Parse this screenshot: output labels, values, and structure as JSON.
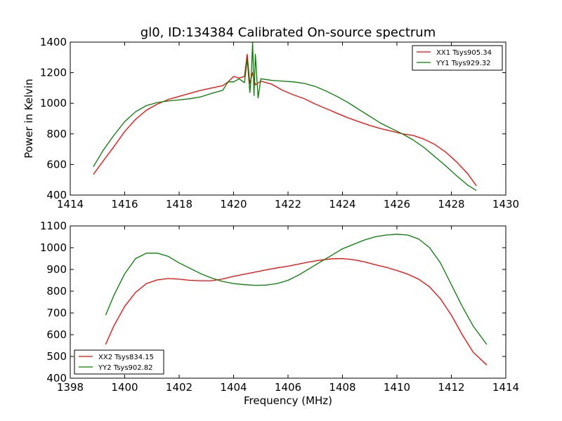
{
  "chart_data": [
    {
      "type": "line",
      "title": "gl0, ID:134384 Calibrated On-source spectrum",
      "xlabel": "",
      "ylabel": "Power in Kelvin",
      "xlim": [
        1414,
        1430
      ],
      "ylim": [
        400,
        1400
      ],
      "xticks": [
        "1414",
        "1416",
        "1418",
        "1420",
        "1422",
        "1424",
        "1426",
        "1428",
        "1430"
      ],
      "yticks": [
        "400",
        "600",
        "800",
        "1000",
        "1200",
        "1400"
      ],
      "legend_position": "top-right",
      "grid": false,
      "series": [
        {
          "name": "XX1 Tsys905.34",
          "color": "#ff0000",
          "x": [
            1414.85,
            1415.2,
            1415.6,
            1416.0,
            1416.4,
            1416.8,
            1417.2,
            1417.6,
            1418.0,
            1418.4,
            1418.8,
            1419.2,
            1419.6,
            1419.8,
            1420.0,
            1420.2,
            1420.4,
            1420.5,
            1420.6,
            1420.7,
            1420.8,
            1421.0,
            1421.4,
            1421.8,
            1422.2,
            1422.6,
            1423.0,
            1423.4,
            1423.8,
            1424.2,
            1424.6,
            1425.0,
            1425.4,
            1425.8,
            1426.2,
            1426.6,
            1427.0,
            1427.4,
            1427.8,
            1428.2,
            1428.6,
            1428.92
          ],
          "y": [
            535,
            620,
            715,
            815,
            895,
            955,
            995,
            1025,
            1045,
            1065,
            1085,
            1100,
            1115,
            1140,
            1175,
            1165,
            1175,
            1320,
            1130,
            1200,
            1120,
            1145,
            1125,
            1085,
            1055,
            1030,
            995,
            965,
            935,
            905,
            880,
            855,
            835,
            818,
            800,
            790,
            765,
            730,
            680,
            615,
            540,
            460
          ]
        },
        {
          "name": "YY1 Tsys929.32",
          "color": "#008000",
          "x": [
            1414.85,
            1415.2,
            1415.6,
            1416.0,
            1416.4,
            1416.8,
            1417.2,
            1417.6,
            1418.0,
            1418.4,
            1418.8,
            1419.2,
            1419.6,
            1419.8,
            1420.0,
            1420.2,
            1420.4,
            1420.5,
            1420.6,
            1420.65,
            1420.7,
            1420.75,
            1420.8,
            1420.9,
            1421.0,
            1421.4,
            1421.8,
            1422.2,
            1422.6,
            1423.0,
            1423.4,
            1423.8,
            1424.2,
            1424.6,
            1425.0,
            1425.4,
            1425.8,
            1426.2,
            1426.6,
            1427.0,
            1427.4,
            1427.8,
            1428.2,
            1428.6,
            1428.92
          ],
          "y": [
            585,
            690,
            790,
            880,
            945,
            985,
            1005,
            1015,
            1022,
            1030,
            1042,
            1065,
            1085,
            1140,
            1140,
            1160,
            1135,
            1290,
            1070,
            1180,
            1400,
            1050,
            1320,
            1035,
            1160,
            1150,
            1145,
            1140,
            1130,
            1110,
            1080,
            1045,
            1005,
            960,
            915,
            870,
            835,
            800,
            760,
            710,
            650,
            590,
            525,
            465,
            430
          ]
        }
      ]
    },
    {
      "type": "line",
      "title": "",
      "xlabel": "Frequency (MHz)",
      "ylabel": "",
      "xlim": [
        1398,
        1414
      ],
      "ylim": [
        400,
        1100
      ],
      "xticks": [
        "1398",
        "1400",
        "1402",
        "1404",
        "1406",
        "1408",
        "1410",
        "1412",
        "1414"
      ],
      "yticks": [
        "400",
        "500",
        "600",
        "700",
        "800",
        "900",
        "1000",
        "1100"
      ],
      "legend_position": "bottom-left",
      "grid": false,
      "series": [
        {
          "name": "XX2 Tsys834.15",
          "color": "#ff0000",
          "x": [
            1399.3,
            1399.6,
            1400.0,
            1400.4,
            1400.8,
            1401.2,
            1401.6,
            1402.0,
            1402.4,
            1402.8,
            1403.2,
            1403.6,
            1404.0,
            1404.4,
            1404.8,
            1405.2,
            1405.6,
            1406.0,
            1406.4,
            1406.8,
            1407.2,
            1407.6,
            1408.0,
            1408.4,
            1408.8,
            1409.2,
            1409.6,
            1410.0,
            1410.4,
            1410.8,
            1411.2,
            1411.6,
            1412.0,
            1412.4,
            1412.8,
            1413.3
          ],
          "y": [
            555,
            640,
            730,
            795,
            835,
            852,
            858,
            855,
            850,
            848,
            848,
            856,
            868,
            878,
            888,
            898,
            907,
            915,
            925,
            935,
            943,
            949,
            950,
            945,
            935,
            922,
            910,
            895,
            878,
            855,
            820,
            765,
            690,
            600,
            520,
            460
          ]
        },
        {
          "name": "YY2 Tsys902.82",
          "color": "#008000",
          "x": [
            1399.3,
            1399.6,
            1400.0,
            1400.4,
            1400.8,
            1401.2,
            1401.6,
            1402.0,
            1402.4,
            1402.8,
            1403.2,
            1403.6,
            1404.0,
            1404.4,
            1404.8,
            1405.2,
            1405.6,
            1406.0,
            1406.4,
            1406.8,
            1407.2,
            1407.6,
            1408.0,
            1408.4,
            1408.8,
            1409.2,
            1409.6,
            1410.0,
            1410.4,
            1410.8,
            1411.2,
            1411.6,
            1412.0,
            1412.4,
            1412.8,
            1413.3
          ],
          "y": [
            690,
            780,
            880,
            950,
            975,
            975,
            960,
            930,
            905,
            880,
            860,
            845,
            835,
            830,
            827,
            828,
            835,
            850,
            875,
            905,
            935,
            965,
            995,
            1015,
            1035,
            1050,
            1058,
            1062,
            1058,
            1040,
            1000,
            930,
            830,
            730,
            640,
            555
          ]
        }
      ]
    }
  ]
}
